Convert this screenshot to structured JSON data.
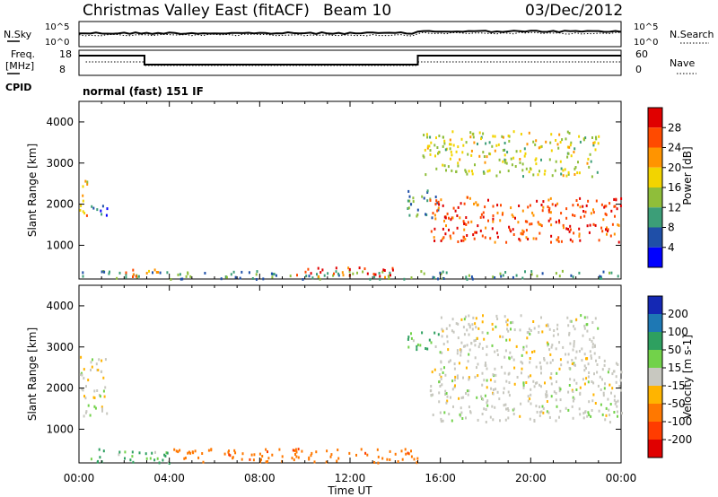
{
  "header": {
    "site": "Christmas Valley East (fitACF)",
    "beam": "Beam 10",
    "date": "03/Dec/2012"
  },
  "status_panels": {
    "nsky_label": "N.Sky",
    "nsearch_label": "N.Search",
    "freq_label_line1": "Freq.",
    "freq_label_line2": "[MHz]",
    "nave_label": "Nave",
    "cpid_label": "CPID",
    "cpid_text": "normal (fast) 151 IF",
    "nsky_ticks": [
      "10^5",
      "10^0"
    ],
    "nsearch_ticks": [
      "10^5",
      "10^0"
    ],
    "freq_ticks": [
      "18",
      "8"
    ],
    "nave_ticks": [
      "60",
      "0"
    ]
  },
  "colorbar_power": {
    "label": "Power [dB]",
    "ticks": [
      "28",
      "24",
      "20",
      "16",
      "12",
      "8",
      "4"
    ],
    "colors": [
      "#e00000",
      "#ff4a00",
      "#ff9400",
      "#f2d400",
      "#8fbe3a",
      "#3c9e78",
      "#1f4fa8",
      "#0000ff"
    ]
  },
  "colorbar_velocity": {
    "label": "Velocity [m s-1]",
    "ticks": [
      "200",
      "100",
      "50",
      "15",
      "-15",
      "-50",
      "-100",
      "-200"
    ],
    "colors": [
      "#1428b4",
      "#1e78b4",
      "#2ea060",
      "#72d24a",
      "#c8c8c0",
      "#ffb400",
      "#ff7800",
      "#ff3c00",
      "#e00000"
    ]
  },
  "chart_data": [
    {
      "type": "heatmap",
      "quantity": "power",
      "title": "",
      "xlabel": "",
      "ylabel": "Slant Range [km]",
      "x_range_hours": [
        0,
        24
      ],
      "ylim": [
        180,
        4500
      ],
      "yticks": [
        "1000",
        "2000",
        "3000",
        "4000"
      ],
      "regions": [
        {
          "x": [
            0.0,
            0.35
          ],
          "y": [
            1400,
            2600
          ],
          "level": 20
        },
        {
          "x": [
            0.3,
            1.3
          ],
          "y": [
            1700,
            2000
          ],
          "level": 6
        },
        {
          "x": [
            0.0,
            24.0
          ],
          "y": [
            200,
            400
          ],
          "level": 10
        },
        {
          "x": [
            1.5,
            3.5
          ],
          "y": [
            250,
            450
          ],
          "level": 24
        },
        {
          "x": [
            9.5,
            14.0
          ],
          "y": [
            250,
            500
          ],
          "level": 28
        },
        {
          "x": [
            14.5,
            16.0
          ],
          "y": [
            1700,
            2400
          ],
          "level": 10
        },
        {
          "x": [
            15.5,
            24.0
          ],
          "y": [
            1100,
            2200
          ],
          "level": 26
        },
        {
          "x": [
            15.2,
            23.0
          ],
          "y": [
            2700,
            3800
          ],
          "level": 16
        }
      ]
    },
    {
      "type": "heatmap",
      "quantity": "velocity",
      "title": "",
      "xlabel": "Time UT",
      "ylabel": "Slant Range [km]",
      "x_range_hours": [
        0,
        24
      ],
      "ylim": [
        180,
        4500
      ],
      "yticks": [
        "1000",
        "2000",
        "3000",
        "4000"
      ],
      "xticks": [
        "00:00",
        "04:00",
        "08:00",
        "12:00",
        "16:00",
        "20:00",
        "00:00"
      ],
      "regions": [
        {
          "x": [
            0.0,
            1.2
          ],
          "y": [
            1300,
            2800
          ],
          "velocity": 0
        },
        {
          "x": [
            0.5,
            4.0
          ],
          "y": [
            200,
            550
          ],
          "velocity": 30
        },
        {
          "x": [
            4.0,
            15.0
          ],
          "y": [
            200,
            550
          ],
          "velocity": -60
        },
        {
          "x": [
            14.5,
            16.0
          ],
          "y": [
            2900,
            3400
          ],
          "velocity": 30
        },
        {
          "x": [
            15.5,
            24.0
          ],
          "y": [
            1200,
            2700
          ],
          "velocity": 0
        },
        {
          "x": [
            16.0,
            23.0
          ],
          "y": [
            2700,
            3800
          ],
          "velocity": 0
        }
      ]
    }
  ]
}
